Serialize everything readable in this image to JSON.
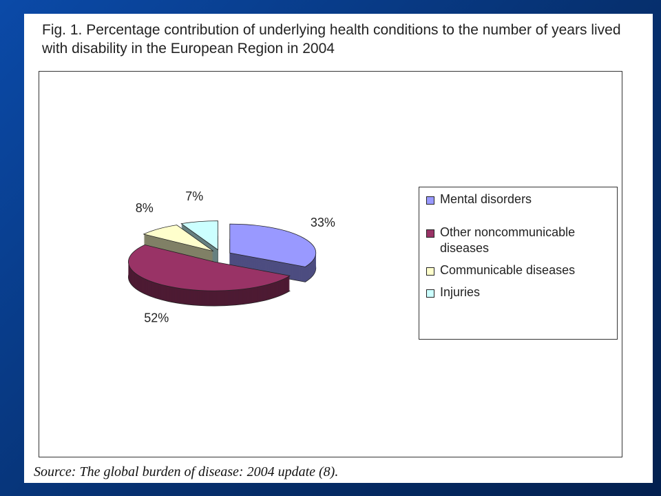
{
  "chart_data": {
    "type": "pie",
    "title": "Fig. 1. Percentage contribution of underlying health conditions to the number of years lived with disability in the European Region in 2004",
    "categories": [
      "Mental disorders",
      "Other noncommunicable diseases",
      "Communicable diseases",
      "Injuries"
    ],
    "values": [
      33,
      52,
      8,
      7
    ],
    "value_labels": [
      "33%",
      "52%",
      "8%",
      "7%"
    ],
    "colors": [
      "#9999ff",
      "#993366",
      "#ffffcc",
      "#ccffff"
    ],
    "source": "Source: The global burden of disease: 2004 update (8)."
  }
}
